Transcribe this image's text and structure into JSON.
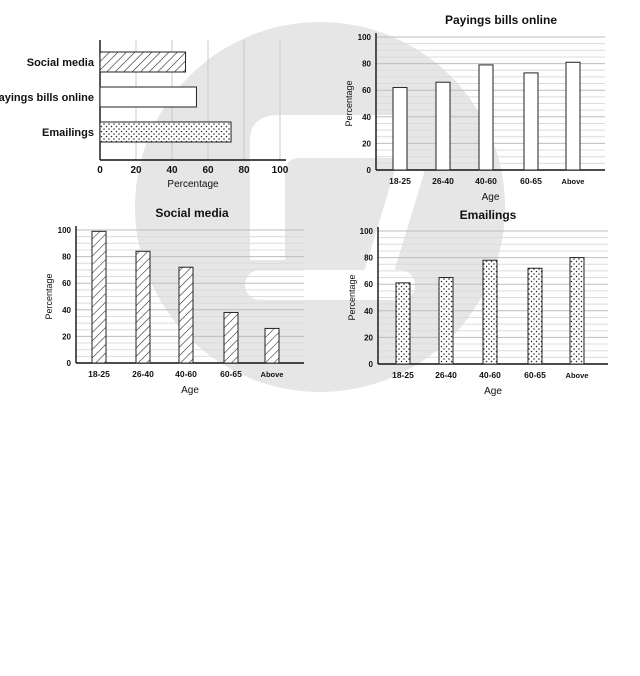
{
  "chart_data": [
    {
      "type": "bar",
      "orientation": "horizontal",
      "title": "",
      "categories": [
        "Social media",
        "Payings bills online",
        "Emailings"
      ],
      "values": [
        47,
        53,
        72
      ],
      "xlabel": "Percentage",
      "ylabel": "",
      "xlim": [
        0,
        100
      ],
      "ticks": [
        "0",
        "20",
        "40",
        "60",
        "80",
        "100"
      ],
      "patterns": [
        "hatch",
        "plain",
        "dots"
      ],
      "grid": true
    },
    {
      "type": "bar",
      "title": "Payings bills online",
      "categories": [
        "18-25",
        "26-40",
        "40-60",
        "60-65",
        "Above"
      ],
      "values": [
        62,
        66,
        79,
        73,
        81
      ],
      "xlabel": "Age",
      "ylabel": "Percentage",
      "ylim": [
        0,
        100
      ],
      "ticks": [
        "0",
        "20",
        "40",
        "60",
        "80",
        "100"
      ],
      "pattern": "plain",
      "grid": true
    },
    {
      "type": "bar",
      "title": "Social media",
      "categories": [
        "18-25",
        "26-40",
        "40-60",
        "60-65",
        "Above"
      ],
      "values": [
        99,
        84,
        72,
        38,
        26
      ],
      "xlabel": "Age",
      "ylabel": "Percentage",
      "ylim": [
        0,
        100
      ],
      "ticks": [
        "0",
        "20",
        "40",
        "60",
        "80",
        "100"
      ],
      "pattern": "hatch",
      "grid": true
    },
    {
      "type": "bar",
      "title": "Emailings",
      "categories": [
        "18-25",
        "26-40",
        "40-60",
        "60-65",
        "Above"
      ],
      "values": [
        61,
        65,
        78,
        72,
        80
      ],
      "xlabel": "Age",
      "ylabel": "Percentage",
      "ylim": [
        0,
        100
      ],
      "ticks": [
        "0",
        "20",
        "40",
        "60",
        "80",
        "100"
      ],
      "pattern": "dots",
      "grid": true
    }
  ]
}
